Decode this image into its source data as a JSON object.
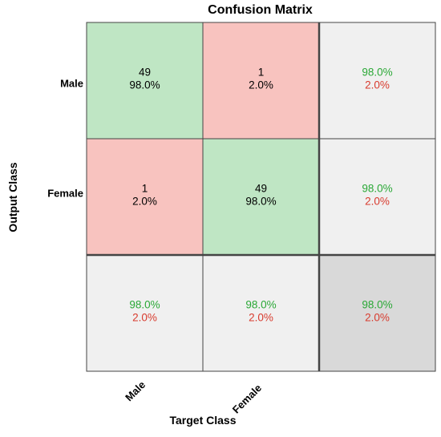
{
  "chart_data": {
    "type": "heatmap",
    "title": "Confusion Matrix",
    "xlabel": "Target Class",
    "ylabel": "Output Class",
    "classes": [
      "Male",
      "Female"
    ],
    "counts": [
      [
        49,
        1
      ],
      [
        1,
        49
      ]
    ],
    "percents": [
      [
        "98.0%",
        "2.0%"
      ],
      [
        "2.0%",
        "98.0%"
      ]
    ],
    "row_summary": [
      [
        "98.0%",
        "2.0%"
      ],
      [
        "98.0%",
        "2.0%"
      ]
    ],
    "col_summary": [
      [
        "98.0%",
        "2.0%"
      ],
      [
        "98.0%",
        "2.0%"
      ]
    ],
    "overall": [
      "98.0%",
      "2.0%"
    ],
    "colors": {
      "correct": "#bfe6c4",
      "incorrect": "#f8c3bf",
      "summary": "#f0f0f0",
      "overall": "#d9d9d9",
      "good_text": "#2aa836",
      "bad_text": "#d83b2e",
      "grid": "#444444"
    }
  }
}
